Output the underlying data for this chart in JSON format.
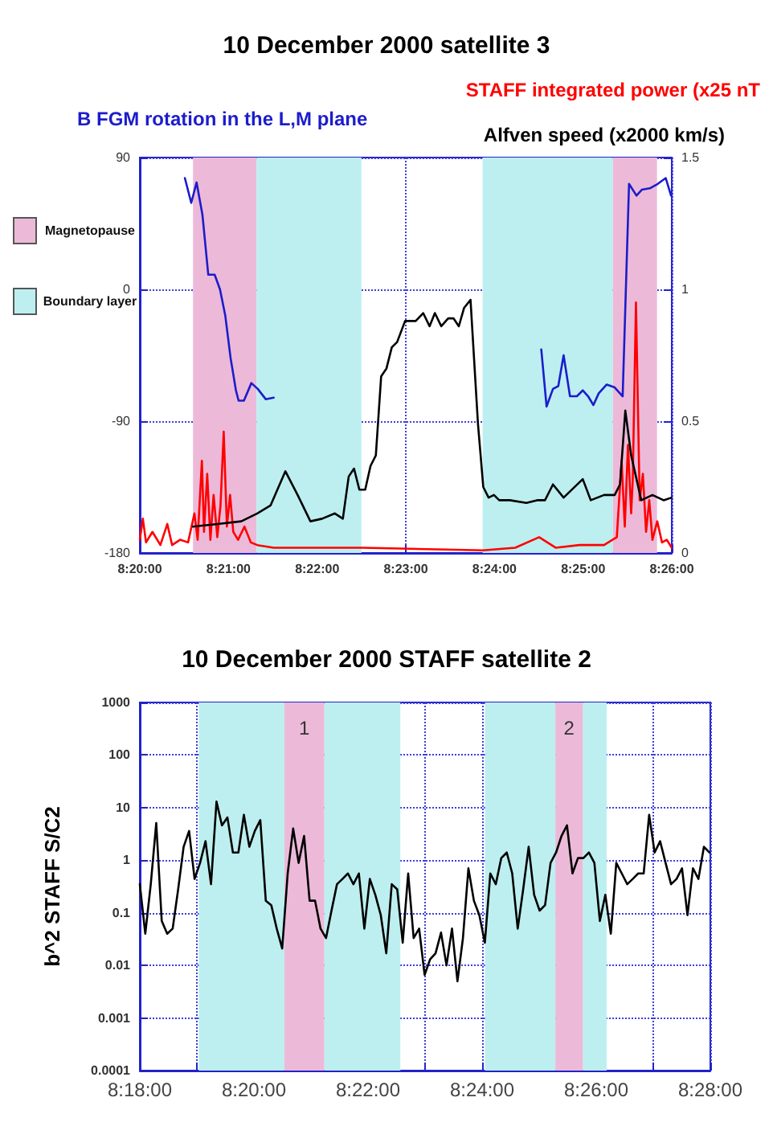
{
  "chart_data": [
    {
      "type": "line",
      "title": "10 December 2000 satellite 3",
      "xlim": [
        8.33333,
        8.43333
      ],
      "xticks": [
        {
          "value": 8.33333,
          "label": "8:20:00"
        },
        {
          "value": 8.35,
          "label": "8:21:00"
        },
        {
          "value": 8.36667,
          "label": "8:22:00"
        },
        {
          "value": 8.38333,
          "label": "8:23:00"
        },
        {
          "value": 8.4,
          "label": "8:24:00"
        },
        {
          "value": 8.41667,
          "label": "8:25:00"
        },
        {
          "value": 8.43333,
          "label": "8:26:00"
        }
      ],
      "ylim": [
        -180,
        90
      ],
      "yticks": [
        -180,
        -90,
        0,
        90
      ],
      "y2lim": [
        0,
        1.5
      ],
      "y2ticks": [
        0,
        0.5,
        1,
        1.5
      ],
      "grid": true,
      "annotations": [
        "Magnetopause",
        "Boundary layer"
      ],
      "bands": [
        {
          "axis": "x",
          "from": 8.34333,
          "to": 8.35528,
          "color": "#ecbad8"
        },
        {
          "axis": "x",
          "from": 8.35528,
          "to": 8.375,
          "color": "#bdeff0"
        },
        {
          "axis": "x",
          "from": 8.39778,
          "to": 8.42222,
          "color": "#bdeff0"
        },
        {
          "axis": "x",
          "from": 8.42222,
          "to": 8.43056,
          "color": "#ecbad8"
        }
      ],
      "series": [
        {
          "name": "B FGM rotation in the L,M plane",
          "color": "#1c1ccc",
          "x": [
            8.3418,
            8.343,
            8.344,
            8.3451,
            8.3462,
            8.3474,
            8.3484,
            8.3494,
            8.3504,
            8.3514,
            8.3519,
            8.3529,
            8.3543,
            8.3555,
            8.357,
            8.3585,
            8.39,
            8.4088,
            8.4098,
            8.411,
            8.412,
            8.413,
            8.4142,
            8.4155,
            8.4166,
            8.4176,
            8.4186,
            8.4196,
            8.4211,
            8.4226,
            8.4241,
            8.4253,
            8.4267,
            8.4277,
            8.4292,
            8.4307,
            8.4322,
            8.4332
          ],
          "values": [
            76,
            59,
            73,
            51,
            10,
            10,
            0,
            -18,
            -47,
            -69,
            -76,
            -76,
            -64,
            -68,
            -75,
            -74,
            null,
            -41,
            -80,
            -68,
            -66,
            -45,
            -73,
            -73,
            -69,
            -73,
            -79,
            -71,
            -65,
            -67,
            -73,
            72,
            64,
            68,
            69,
            72,
            76,
            64
          ]
        },
        {
          "name": "STAFF integrated power (x25 nT",
          "color": "#ff0000",
          "axis": "y2",
          "x": [
            8.33333,
            8.3339,
            8.3345,
            8.3357,
            8.3372,
            8.3385,
            8.3394,
            8.3409,
            8.3424,
            8.3436,
            8.3442,
            8.345,
            8.3454,
            8.346,
            8.3466,
            8.3472,
            8.3479,
            8.3485,
            8.3491,
            8.3497,
            8.3503,
            8.3509,
            8.3518,
            8.353,
            8.3542,
            8.3554,
            8.3585,
            8.3645,
            8.3706,
            8.3751,
            8.3978,
            8.4039,
            8.4084,
            8.4115,
            8.416,
            8.4206,
            8.423,
            8.4239,
            8.4245,
            8.4251,
            8.4257,
            8.426,
            8.4266,
            8.4273,
            8.4279,
            8.4285,
            8.4291,
            8.4297,
            8.4306,
            8.4315,
            8.4324,
            8.4333
          ],
          "values": [
            0.05,
            0.13,
            0.04,
            0.08,
            0.03,
            0.11,
            0.03,
            0.05,
            0.04,
            0.15,
            0.05,
            0.35,
            0.08,
            0.3,
            0.05,
            0.22,
            0.06,
            0.18,
            0.46,
            0.1,
            0.22,
            0.08,
            0.05,
            0.1,
            0.04,
            0.03,
            0.02,
            0.02,
            0.02,
            0.02,
            0.01,
            0.02,
            0.06,
            0.02,
            0.03,
            0.03,
            0.06,
            0.35,
            0.1,
            0.41,
            0.15,
            0.28,
            0.95,
            0.2,
            0.3,
            0.08,
            0.2,
            0.05,
            0.12,
            0.04,
            0.05,
            0.02
          ]
        },
        {
          "name": "Alfven speed (x2000 km/s)",
          "color": "#000000",
          "axis": "y2",
          "x": [
            8.3433,
            8.3479,
            8.3524,
            8.3554,
            8.3579,
            8.3607,
            8.363,
            8.3654,
            8.3676,
            8.37,
            8.3715,
            8.3726,
            8.3736,
            8.3746,
            8.3757,
            8.3767,
            8.3777,
            8.3787,
            8.3797,
            8.3807,
            8.3817,
            8.3832,
            8.3852,
            8.3866,
            8.3878,
            8.3888,
            8.39,
            8.3913,
            8.3923,
            8.3933,
            8.3943,
            8.3955,
            8.3969,
            8.3979,
            8.3989,
            8.3999,
            8.4009,
            8.4029,
            8.406,
            8.408,
            8.4095,
            8.411,
            8.413,
            8.4166,
            8.4181,
            8.4206,
            8.4226,
            8.4236,
            8.4246,
            8.4257,
            8.4276,
            8.4297,
            8.4318,
            8.4333
          ],
          "values": [
            0.1,
            0.11,
            0.12,
            0.15,
            0.18,
            0.31,
            0.22,
            0.12,
            0.13,
            0.15,
            0.13,
            0.29,
            0.32,
            0.24,
            0.24,
            0.33,
            0.37,
            0.67,
            0.7,
            0.78,
            0.8,
            0.88,
            0.88,
            0.91,
            0.86,
            0.91,
            0.86,
            0.89,
            0.89,
            0.86,
            0.93,
            0.96,
            0.49,
            0.25,
            0.21,
            0.22,
            0.2,
            0.2,
            0.19,
            0.2,
            0.2,
            0.26,
            0.21,
            0.28,
            0.2,
            0.22,
            0.22,
            0.26,
            0.54,
            0.37,
            0.2,
            0.22,
            0.2,
            0.21
          ]
        }
      ]
    },
    {
      "type": "line",
      "title": "10 December 2000 STAFF satellite 2",
      "ylabel": "b^2 STAFF S/C2",
      "log": "y",
      "xlim": [
        8.3,
        8.46667
      ],
      "xticks": [
        {
          "value": 8.3,
          "label": "8:18:00"
        },
        {
          "value": 8.31667,
          "label": null
        },
        {
          "value": 8.33333,
          "label": "8:20:00"
        },
        {
          "value": 8.35,
          "label": null
        },
        {
          "value": 8.36667,
          "label": "8:22:00"
        },
        {
          "value": 8.38333,
          "label": null
        },
        {
          "value": 8.4,
          "label": "8:24:00"
        },
        {
          "value": 8.41667,
          "label": null
        },
        {
          "value": 8.43333,
          "label": "8:26:00"
        },
        {
          "value": 8.45,
          "label": null
        },
        {
          "value": 8.46667,
          "label": "8:28:00"
        }
      ],
      "ylim": [
        0.0001,
        1000
      ],
      "yticks": [
        0.0001,
        0.001,
        0.01,
        0.1,
        1,
        10,
        100,
        1000
      ],
      "grid": true,
      "bands": [
        {
          "axis": "x",
          "from": 8.31722,
          "to": 8.34222,
          "label": null,
          "color": "#bdeff0"
        },
        {
          "axis": "x",
          "from": 8.34222,
          "to": 8.35389,
          "label": "1",
          "color": "#ecbad8"
        },
        {
          "axis": "x",
          "from": 8.35389,
          "to": 8.37611,
          "label": null,
          "color": "#bdeff0"
        },
        {
          "axis": "x",
          "from": 8.40083,
          "to": 8.42139,
          "label": null,
          "color": "#bdeff0"
        },
        {
          "axis": "x",
          "from": 8.42139,
          "to": 8.42944,
          "label": "2",
          "color": "#ecbad8"
        },
        {
          "axis": "x",
          "from": 8.42944,
          "to": 8.43639,
          "label": null,
          "color": "#bdeff0"
        }
      ],
      "series": [
        {
          "color": "#000000",
          "x": [
            8.3,
            8.3016,
            8.3032,
            8.3048,
            8.3064,
            8.308,
            8.3096,
            8.3112,
            8.3128,
            8.3144,
            8.316,
            8.3176,
            8.3192,
            8.3208,
            8.3224,
            8.324,
            8.3256,
            8.3272,
            8.3288,
            8.3304,
            8.332,
            8.3336,
            8.3352,
            8.3368,
            8.3384,
            8.34,
            8.3416,
            8.3432,
            8.3448,
            8.3464,
            8.348,
            8.3496,
            8.3512,
            8.3528,
            8.3544,
            8.356,
            8.3576,
            8.3592,
            8.3608,
            8.3624,
            8.364,
            8.3656,
            8.3672,
            8.3688,
            8.3704,
            8.372,
            8.3736,
            8.3752,
            8.3768,
            8.3784,
            8.38,
            8.3816,
            8.3832,
            8.3848,
            8.3864,
            8.388,
            8.3896,
            8.3912,
            8.3928,
            8.3944,
            8.396,
            8.3976,
            8.3992,
            8.4008,
            8.4024,
            8.404,
            8.4056,
            8.4072,
            8.4088,
            8.4104,
            8.412,
            8.4136,
            8.4152,
            8.4168,
            8.4184,
            8.42,
            8.4216,
            8.4232,
            8.4248,
            8.4264,
            8.428,
            8.4296,
            8.4312,
            8.4328,
            8.4344,
            8.436,
            8.4376,
            8.4392,
            8.4408,
            8.4424,
            8.444,
            8.4456,
            8.4472,
            8.4488,
            8.4504,
            8.452,
            8.4536,
            8.4552,
            8.4568,
            8.4584,
            8.46,
            8.4616,
            8.4632,
            8.4648,
            8.4664
          ],
          "values": [
            0.35,
            0.04,
            0.35,
            5.1,
            0.07,
            0.04,
            0.05,
            0.28,
            1.8,
            3.6,
            0.44,
            0.89,
            2.3,
            0.35,
            13,
            4.6,
            6.5,
            1.4,
            1.4,
            7.3,
            1.8,
            3.6,
            5.8,
            0.17,
            0.14,
            0.05,
            0.021,
            0.56,
            4,
            0.89,
            2.9,
            0.17,
            0.17,
            0.05,
            0.033,
            0.11,
            0.35,
            0.44,
            0.56,
            0.35,
            0.56,
            0.05,
            0.44,
            0.22,
            0.09,
            0.017,
            0.35,
            0.28,
            0.027,
            0.56,
            0.033,
            0.05,
            0.0066,
            0.013,
            0.017,
            0.042,
            0.01,
            0.05,
            0.005,
            0.033,
            0.7,
            0.17,
            0.09,
            0.027,
            0.56,
            0.35,
            1.1,
            1.4,
            0.56,
            0.05,
            0.28,
            1.8,
            0.22,
            0.11,
            0.14,
            0.89,
            1.4,
            2.9,
            4.6,
            0.56,
            1.1,
            1.1,
            1.4,
            0.89,
            0.07,
            0.22,
            0.04,
            0.89,
            0.56,
            0.35,
            0.44,
            0.56,
            0.56,
            7.3,
            1.4,
            2.3,
            0.89,
            0.35,
            0.44,
            0.7,
            0.09,
            0.7,
            0.44,
            1.8,
            1.4
          ]
        }
      ]
    }
  ]
}
